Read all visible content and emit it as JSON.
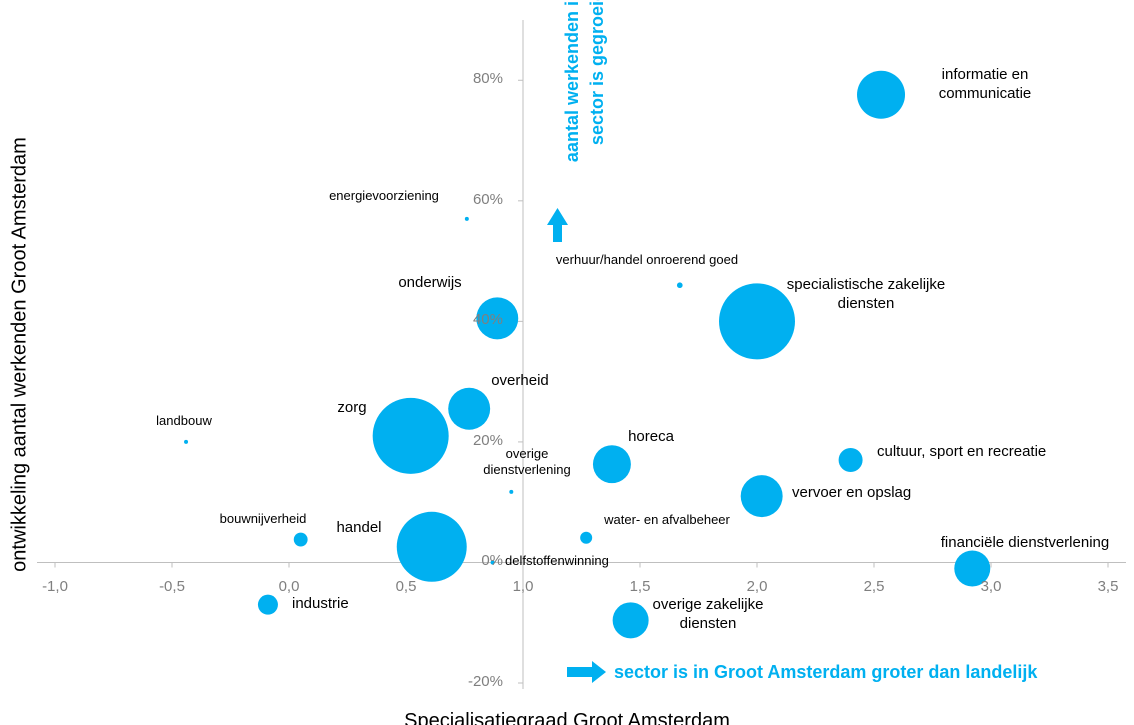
{
  "chart_data": {
    "type": "bubble",
    "xlabel": "Specialisatiegraad Groot Amsterdam",
    "ylabel": "ontwikkeling aantal werkenden Groot Amsterdam",
    "annotations": [
      "aantal werkenden in sector is gegroeid",
      "sector is in Groot Amsterdam groter dan landelijk"
    ],
    "color": "#00b0f0",
    "labels": [
      "informatie en communicatie",
      "energievoorziening",
      "verhuur/handel onroerend goed",
      "onderwijs",
      "specialistische zakelijke diensten",
      "overheid",
      "landbouw",
      "zorg",
      "horeca",
      "cultuur, sport en recreatie",
      "overige dienstverlening",
      "vervoer en opslag",
      "bouwnijverheid",
      "handel",
      "water- en afvalbeheer",
      "delfstoffenwinning",
      "financiële dienstverlening",
      "industrie",
      "overige zakelijke diensten"
    ],
    "x": [
      2.53,
      0.76,
      1.67,
      0.89,
      2.0,
      0.77,
      -0.44,
      0.52,
      1.38,
      2.4,
      0.95,
      2.02,
      0.05,
      0.61,
      1.27,
      0.87,
      2.92,
      -0.09,
      1.46
    ],
    "values": [
      77.6,
      57,
      46,
      40.5,
      40,
      25.5,
      20,
      21,
      16.3,
      17,
      11.7,
      11,
      3.8,
      2.6,
      4.1,
      0,
      -1,
      -7,
      -9.6
    ],
    "sizes": [
      144,
      1,
      2,
      110,
      361,
      110,
      1,
      361,
      90,
      36,
      1,
      110,
      12,
      306,
      9,
      1,
      81,
      25,
      81
    ],
    "xlim": [
      -1,
      3.5
    ],
    "ylim": [
      -20,
      90
    ],
    "xticks": [
      {
        "value": -1,
        "label": "-1,0"
      },
      {
        "value": -0.5,
        "label": "-0,5"
      },
      {
        "value": 0,
        "label": "0,0"
      },
      {
        "value": 0.5,
        "label": "0,5"
      },
      {
        "value": 1,
        "label": "1,0"
      },
      {
        "value": 1.5,
        "label": "1,5"
      },
      {
        "value": 2,
        "label": "2,0"
      },
      {
        "value": 2.5,
        "label": "2,5"
      },
      {
        "value": 3,
        "label": "3,0"
      },
      {
        "value": 3.5,
        "label": "3,5"
      }
    ],
    "yticks": [
      {
        "value": -20,
        "label": "-20%"
      },
      {
        "value": 0,
        "label": "0%"
      },
      {
        "value": 20,
        "label": "20%"
      },
      {
        "value": 40,
        "label": "40%"
      },
      {
        "value": 60,
        "label": "60%"
      },
      {
        "value": 80,
        "label": "80%"
      }
    ]
  }
}
